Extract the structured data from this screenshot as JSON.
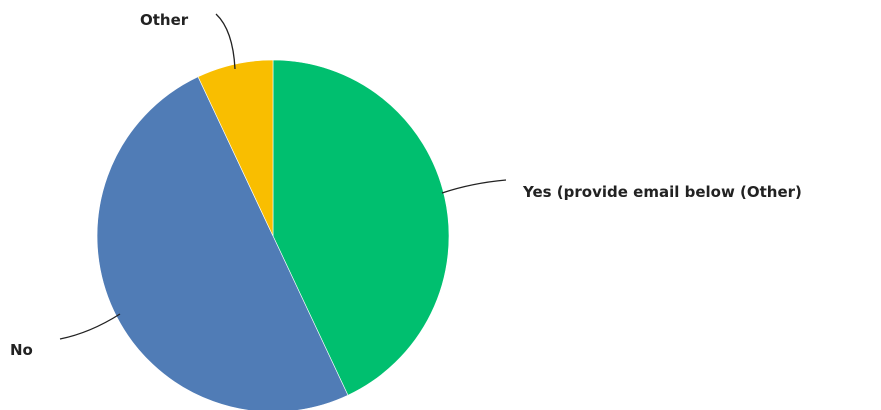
{
  "chart_data": {
    "type": "pie",
    "title": "",
    "slices": [
      {
        "label": "Yes (provide email below (Other)",
        "value": 43,
        "color": "#00bf6f"
      },
      {
        "label": "No",
        "value": 50,
        "color": "#507cb6"
      },
      {
        "label": "Other",
        "value": 7,
        "color": "#f9be00"
      }
    ],
    "start": "12 o'clock",
    "direction": "clockwise",
    "legend": "none"
  }
}
